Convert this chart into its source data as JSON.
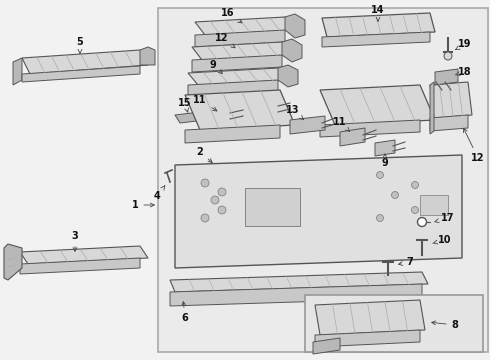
{
  "bg_color": "#f2f2f2",
  "inner_box_edge": "#999999",
  "line_color": "#444444",
  "text_color": "#111111",
  "part_fill": "#d8d8d8",
  "part_dark": "#b8b8b8",
  "part_edge": "#555555",
  "hatch_color": "#aaaaaa",
  "white_fill": "#ffffff",
  "figsize": [
    4.9,
    3.6
  ],
  "dpi": 100
}
